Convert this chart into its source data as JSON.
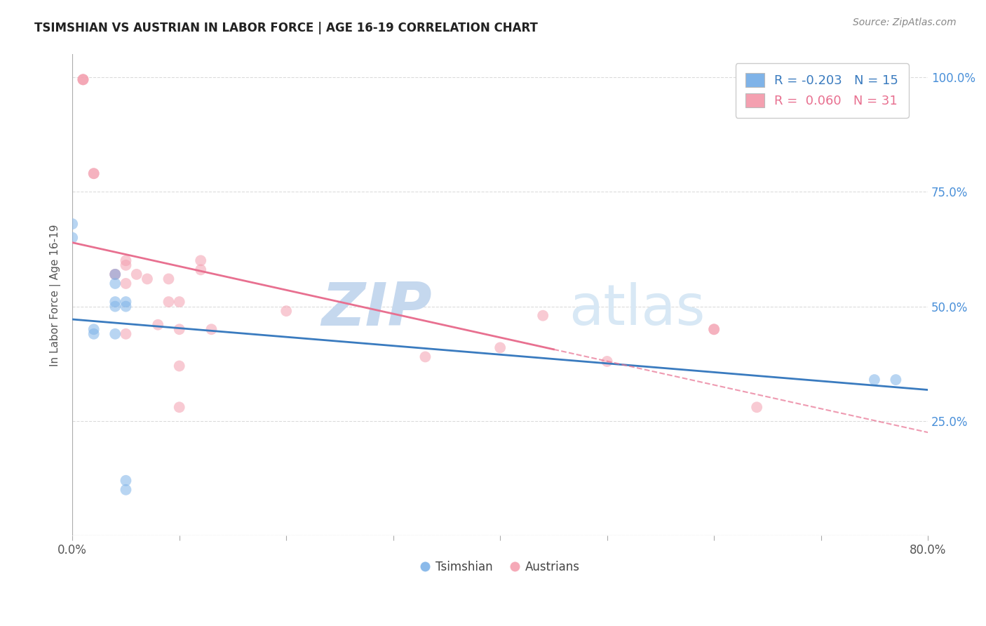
{
  "title": "TSIMSHIAN VS AUSTRIAN IN LABOR FORCE | AGE 16-19 CORRELATION CHART",
  "source": "Source: ZipAtlas.com",
  "ylabel": "In Labor Force | Age 16-19",
  "xmin": 0.0,
  "xmax": 0.8,
  "ymin": 0.0,
  "ymax": 1.05,
  "x_ticks": [
    0.0,
    0.1,
    0.2,
    0.3,
    0.4,
    0.5,
    0.6,
    0.7,
    0.8
  ],
  "x_tick_labels": [
    "0.0%",
    "",
    "",
    "",
    "",
    "",
    "",
    "",
    "80.0%"
  ],
  "y_ticks": [
    0.0,
    0.25,
    0.5,
    0.75,
    1.0
  ],
  "y_tick_labels_right": [
    "",
    "25.0%",
    "50.0%",
    "75.0%",
    "100.0%"
  ],
  "tsimshian_color": "#7fb3e8",
  "austrian_color": "#f4a0b0",
  "tsimshian_line_color": "#3a7bbf",
  "austrian_line_color": "#e87090",
  "tsimshian_R": -0.203,
  "tsimshian_N": 15,
  "austrian_R": 0.06,
  "austrian_N": 31,
  "tsimshian_x": [
    0.0,
    0.0,
    0.02,
    0.02,
    0.04,
    0.04,
    0.04,
    0.04,
    0.04,
    0.05,
    0.05,
    0.05,
    0.05,
    0.75,
    0.77
  ],
  "tsimshian_y": [
    0.68,
    0.65,
    0.45,
    0.44,
    0.57,
    0.55,
    0.51,
    0.5,
    0.44,
    0.51,
    0.5,
    0.1,
    0.12,
    0.34,
    0.34
  ],
  "austrian_x": [
    0.01,
    0.01,
    0.01,
    0.02,
    0.02,
    0.04,
    0.04,
    0.05,
    0.05,
    0.05,
    0.05,
    0.06,
    0.07,
    0.08,
    0.09,
    0.09,
    0.1,
    0.1,
    0.1,
    0.1,
    0.12,
    0.12,
    0.13,
    0.2,
    0.33,
    0.4,
    0.44,
    0.5,
    0.6,
    0.6,
    0.64
  ],
  "austrian_y": [
    0.995,
    0.995,
    0.995,
    0.79,
    0.79,
    0.57,
    0.57,
    0.6,
    0.59,
    0.55,
    0.44,
    0.57,
    0.56,
    0.46,
    0.56,
    0.51,
    0.51,
    0.45,
    0.37,
    0.28,
    0.6,
    0.58,
    0.45,
    0.49,
    0.39,
    0.41,
    0.48,
    0.38,
    0.45,
    0.45,
    0.28
  ],
  "marker_size": 130,
  "alpha": 0.55,
  "background_color": "#ffffff",
  "grid_color": "#cccccc",
  "watermark_zip": "ZIP",
  "watermark_atlas": "atlas",
  "watermark_color": "#dce8f5"
}
